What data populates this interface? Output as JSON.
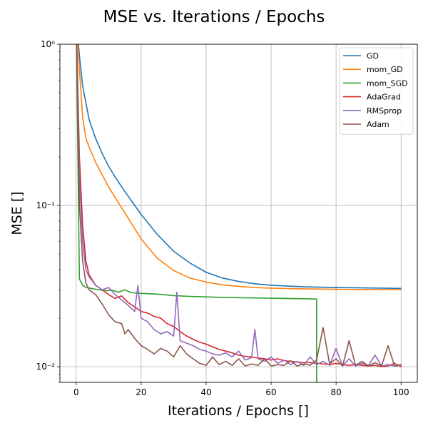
{
  "chart_data": {
    "type": "line",
    "title": "MSE vs. Iterations / Epochs",
    "xlabel": "Iterations / Epochs []",
    "ylabel": "MSE []",
    "xlim": [
      -5,
      105
    ],
    "ylim": [
      0.008,
      1
    ],
    "yscale": "log",
    "x_ticks": [
      0,
      20,
      40,
      60,
      80,
      100
    ],
    "x_tick_labels": [
      "0",
      "20",
      "40",
      "60",
      "80",
      "100"
    ],
    "y_ticks": [
      0.01,
      0.1,
      1
    ],
    "y_tick_labels": [
      "10⁻²",
      "10⁻¹",
      "10⁰"
    ],
    "grid": true,
    "legend_position": "top-right",
    "series": [
      {
        "name": "GD",
        "color": "#1f77b4",
        "x": [
          0,
          1,
          2,
          4,
          6,
          8,
          10,
          12,
          15,
          20,
          25,
          30,
          35,
          40,
          45,
          50,
          55,
          60,
          70,
          80,
          90,
          100
        ],
        "y": [
          1.5,
          0.85,
          0.55,
          0.34,
          0.26,
          0.21,
          0.175,
          0.15,
          0.122,
          0.088,
          0.066,
          0.052,
          0.044,
          0.0385,
          0.0355,
          0.0338,
          0.0327,
          0.032,
          0.0313,
          0.031,
          0.0308,
          0.0306
        ]
      },
      {
        "name": "mom_GD",
        "color": "#ff7f0e",
        "x": [
          0,
          1,
          2,
          3,
          4,
          6,
          8,
          10,
          12,
          15,
          20,
          25,
          30,
          35,
          40,
          45,
          50,
          55,
          60,
          70,
          80,
          90,
          100
        ],
        "y": [
          1.5,
          0.7,
          0.35,
          0.26,
          0.23,
          0.185,
          0.155,
          0.13,
          0.112,
          0.09,
          0.062,
          0.047,
          0.0395,
          0.0355,
          0.0335,
          0.0322,
          0.0315,
          0.031,
          0.0307,
          0.0304,
          0.0302,
          0.0301,
          0.03
        ]
      },
      {
        "name": "mom_SGD",
        "color": "#2ca02c",
        "x": [
          0,
          1,
          2,
          3,
          5,
          7,
          9,
          11,
          13,
          15,
          17,
          20,
          25,
          30,
          35,
          40,
          45,
          50,
          55,
          60,
          65,
          70,
          74,
          74.01
        ],
        "y": [
          1.5,
          0.035,
          0.032,
          0.031,
          0.0305,
          0.03,
          0.0296,
          0.0298,
          0.029,
          0.03,
          0.0288,
          0.0285,
          0.0282,
          0.0276,
          0.0273,
          0.0271,
          0.0269,
          0.0268,
          0.0267,
          0.0266,
          0.0265,
          0.0264,
          0.0263,
          0.0075
        ]
      },
      {
        "name": "AdaGrad",
        "color": "#d62728",
        "x": [
          0,
          1,
          2,
          3,
          4,
          6,
          8,
          10,
          12,
          14,
          16,
          18,
          20,
          22,
          24,
          26,
          28,
          30,
          32,
          34,
          36,
          38,
          40,
          42,
          44,
          46,
          48,
          50,
          52,
          54,
          56,
          58,
          60,
          62,
          64,
          66,
          68,
          70,
          72,
          74,
          76,
          78,
          80,
          82,
          84,
          86,
          88,
          90,
          92,
          94,
          96,
          98,
          100
        ],
        "y": [
          1.5,
          0.2,
          0.075,
          0.045,
          0.037,
          0.032,
          0.03,
          0.028,
          0.0265,
          0.0275,
          0.025,
          0.0235,
          0.022,
          0.0215,
          0.0205,
          0.02,
          0.0185,
          0.0178,
          0.0165,
          0.0155,
          0.0148,
          0.0142,
          0.0138,
          0.0133,
          0.0128,
          0.0125,
          0.0122,
          0.0118,
          0.0116,
          0.0115,
          0.0113,
          0.0112,
          0.011,
          0.0112,
          0.0109,
          0.0108,
          0.0107,
          0.0106,
          0.0106,
          0.0105,
          0.0104,
          0.0103,
          0.0105,
          0.0103,
          0.0102,
          0.0103,
          0.0102,
          0.0101,
          0.0102,
          0.01,
          0.0101,
          0.0105,
          0.01
        ]
      },
      {
        "name": "RMSprop",
        "color": "#9467bd",
        "x": [
          0,
          1,
          2,
          3,
          4,
          6,
          8,
          10,
          12,
          14,
          16,
          18,
          19,
          20,
          22,
          24,
          26,
          28,
          30,
          31,
          32,
          34,
          36,
          38,
          40,
          42,
          44,
          46,
          48,
          50,
          52,
          54,
          55,
          56,
          58,
          60,
          62,
          64,
          66,
          68,
          70,
          72,
          74,
          76,
          78,
          80,
          82,
          84,
          86,
          88,
          90,
          92,
          94,
          96,
          98,
          100
        ],
        "y": [
          1.5,
          0.15,
          0.06,
          0.04,
          0.036,
          0.032,
          0.03,
          0.031,
          0.028,
          0.026,
          0.024,
          0.022,
          0.032,
          0.02,
          0.019,
          0.017,
          0.016,
          0.0165,
          0.0155,
          0.029,
          0.0145,
          0.014,
          0.0135,
          0.0128,
          0.0125,
          0.012,
          0.0118,
          0.0122,
          0.0115,
          0.0125,
          0.011,
          0.0114,
          0.017,
          0.0112,
          0.0108,
          0.0115,
          0.0105,
          0.011,
          0.0103,
          0.0108,
          0.0102,
          0.0115,
          0.0103,
          0.0108,
          0.0102,
          0.013,
          0.0101,
          0.0112,
          0.0101,
          0.0105,
          0.0102,
          0.0118,
          0.0101,
          0.0103,
          0.0101,
          0.0102
        ]
      },
      {
        "name": "Adam",
        "color": "#8c564b",
        "x": [
          0,
          1,
          2,
          3,
          4,
          6,
          8,
          10,
          12,
          14,
          15,
          16,
          18,
          20,
          22,
          24,
          26,
          28,
          30,
          32,
          34,
          36,
          38,
          40,
          42,
          44,
          46,
          48,
          50,
          52,
          54,
          56,
          58,
          60,
          62,
          64,
          66,
          68,
          70,
          72,
          74,
          76,
          78,
          80,
          82,
          84,
          86,
          88,
          90,
          92,
          94,
          96,
          98,
          100
        ],
        "y": [
          1.5,
          0.1,
          0.045,
          0.033,
          0.03,
          0.028,
          0.0245,
          0.021,
          0.019,
          0.0185,
          0.016,
          0.017,
          0.015,
          0.0135,
          0.0128,
          0.012,
          0.013,
          0.0125,
          0.0115,
          0.0135,
          0.012,
          0.0112,
          0.0105,
          0.0102,
          0.0115,
          0.0103,
          0.0108,
          0.0102,
          0.0112,
          0.0101,
          0.0104,
          0.0102,
          0.0112,
          0.0101,
          0.0103,
          0.0102,
          0.0109,
          0.0101,
          0.0104,
          0.0102,
          0.011,
          0.0175,
          0.0104,
          0.0112,
          0.0101,
          0.0145,
          0.0102,
          0.0108,
          0.0101,
          0.0106,
          0.0101,
          0.0135,
          0.0101,
          0.0103
        ]
      }
    ]
  }
}
